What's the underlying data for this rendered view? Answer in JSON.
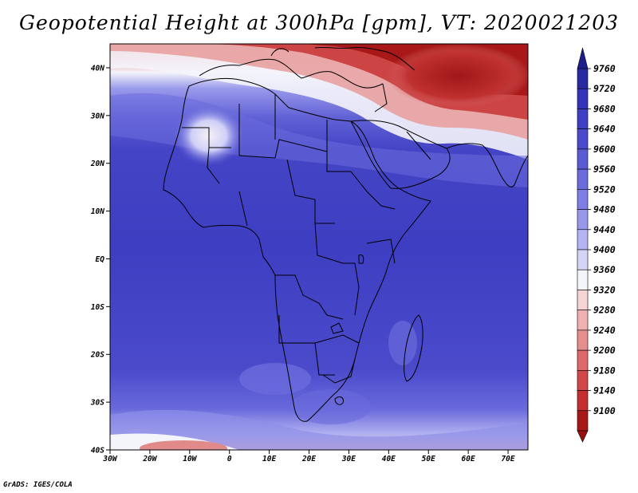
{
  "title": "Geopotential Height at 300hPa [gpm], VT: 2020021203",
  "credit": "GrADS: IGES/COLA",
  "map": {
    "lon_labels": [
      "30W",
      "20W",
      "10W",
      "0",
      "10E",
      "20E",
      "30E",
      "40E",
      "50E",
      "60E",
      "70E"
    ],
    "lat_labels": [
      "40N",
      "30N",
      "20N",
      "10N",
      "EQ",
      "10S",
      "20S",
      "30S",
      "40S"
    ],
    "lon_range": [
      -30,
      75
    ],
    "lat_range": [
      -40,
      45
    ]
  },
  "colorbar": {
    "labels": [
      "9760",
      "9720",
      "9680",
      "9640",
      "9600",
      "9560",
      "9520",
      "9480",
      "9440",
      "9400",
      "9360",
      "9320",
      "9280",
      "9240",
      "9200",
      "9180",
      "9140",
      "9100"
    ],
    "colors": [
      "#2a2aa0",
      "#3434b8",
      "#3f3fc4",
      "#4a4acb",
      "#5a5ad2",
      "#6b6bdc",
      "#7e7ee4",
      "#9797ec",
      "#b4b4f2",
      "#d4d4f7",
      "#f4f4fb",
      "#f5d4d4",
      "#eeb0b0",
      "#e68e8e",
      "#dd6a6a",
      "#d14848",
      "#c43030",
      "#a81818"
    ]
  },
  "colors": {
    "arrow_top": "#1f1f8c",
    "arrow_bottom": "#9a1010"
  }
}
